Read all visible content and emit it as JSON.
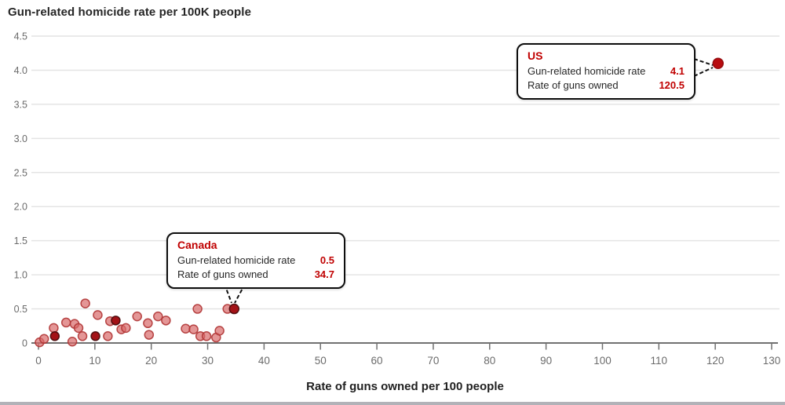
{
  "chart_data": {
    "type": "scatter",
    "title": "Gun-related homicide rate per 100K people",
    "xlabel": "Rate of guns owned per 100 people",
    "ylabel": "Gun-related homicide rate per 100K people",
    "xlim": [
      0,
      130
    ],
    "ylim": [
      0,
      4.5
    ],
    "x_ticks": [
      0,
      10,
      20,
      30,
      40,
      50,
      60,
      70,
      80,
      90,
      100,
      110,
      120,
      130
    ],
    "y_ticks": [
      0,
      0.5,
      1.0,
      1.5,
      2.0,
      2.5,
      3.0,
      3.5,
      4.0,
      4.5
    ],
    "grid": "horizontal",
    "legend": "none",
    "series": [
      {
        "name": "countries",
        "color": "#d96a6a",
        "stroke": "#b03535",
        "fill_opacity": 0.7,
        "radius": 5.5,
        "points": [
          [
            0.2,
            0.01
          ],
          [
            1.0,
            0.06
          ],
          [
            2.7,
            0.22
          ],
          [
            4.9,
            0.3
          ],
          [
            6.0,
            0.02
          ],
          [
            6.4,
            0.28
          ],
          [
            7.1,
            0.22
          ],
          [
            7.8,
            0.1
          ],
          [
            8.3,
            0.58
          ],
          [
            10.5,
            0.41
          ],
          [
            12.3,
            0.1
          ],
          [
            12.7,
            0.32
          ],
          [
            14.7,
            0.2
          ],
          [
            15.5,
            0.22
          ],
          [
            17.5,
            0.39
          ],
          [
            19.4,
            0.29
          ],
          [
            19.6,
            0.12
          ],
          [
            21.2,
            0.39
          ],
          [
            22.6,
            0.33
          ],
          [
            26.1,
            0.21
          ],
          [
            27.5,
            0.2
          ],
          [
            28.2,
            0.5
          ],
          [
            28.7,
            0.1
          ],
          [
            29.8,
            0.1
          ],
          [
            31.5,
            0.08
          ],
          [
            32.1,
            0.18
          ],
          [
            33.5,
            0.5
          ]
        ]
      },
      {
        "name": "highlighted-dark",
        "color": "#a31217",
        "stroke": "#470809",
        "fill_opacity": 1,
        "radius": 5.5,
        "points": [
          [
            2.9,
            0.1
          ],
          [
            10.1,
            0.1
          ],
          [
            13.7,
            0.33
          ]
        ]
      },
      {
        "name": "canada-point",
        "color": "#a31217",
        "stroke": "#470809",
        "fill_opacity": 1,
        "radius": 6,
        "points": [
          [
            34.7,
            0.5
          ]
        ]
      },
      {
        "name": "us-point",
        "color": "#b80c10",
        "stroke": "#8f0509",
        "fill_opacity": 1,
        "radius": 6.5,
        "points": [
          [
            120.5,
            4.1
          ]
        ]
      }
    ],
    "callouts": {
      "us": {
        "title": "US",
        "rows": [
          {
            "label": "Gun-related homicide rate",
            "value": "4.1"
          },
          {
            "label": "Rate of guns owned",
            "value": "120.5"
          }
        ]
      },
      "canada": {
        "title": "Canada",
        "rows": [
          {
            "label": "Gun-related homicide rate",
            "value": "0.5"
          },
          {
            "label": "Rate of guns owned",
            "value": "34.7"
          }
        ]
      }
    },
    "colors": {
      "accent_red": "#c00000",
      "point_fill": "#d96a6a",
      "point_stroke": "#b03535",
      "dark_point": "#a31217",
      "grid": "#e4e4e4",
      "axis": "#717171",
      "tick_label": "#6b6b6b",
      "title_text": "#262626"
    }
  }
}
